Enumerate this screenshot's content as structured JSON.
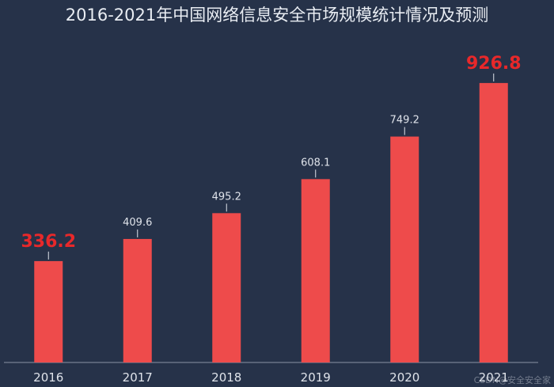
{
  "chart_data": {
    "type": "bar",
    "title": "2016-2021年中国网络信息安全市场规模统计情况及预测",
    "categories": [
      "2016",
      "2017",
      "2018",
      "2019",
      "2020",
      "2021"
    ],
    "values": [
      336.2,
      409.6,
      495.2,
      608.1,
      749.2,
      926.8
    ],
    "value_labels": [
      "336.2",
      "409.6",
      "495.2",
      "608.1",
      "749.2",
      "926.8"
    ],
    "highlighted_labels": [
      "2016",
      "2021"
    ],
    "xlabel": "",
    "ylabel": "",
    "ylim": [
      0,
      1050
    ],
    "grid": false,
    "colors": {
      "background": "#263249",
      "bar": "#ee4b4b",
      "label": "#dfe3ea",
      "highlight_label": "#e8282a",
      "axis": "#8a93a5"
    }
  },
  "watermark": "CSDN@安全安全家"
}
